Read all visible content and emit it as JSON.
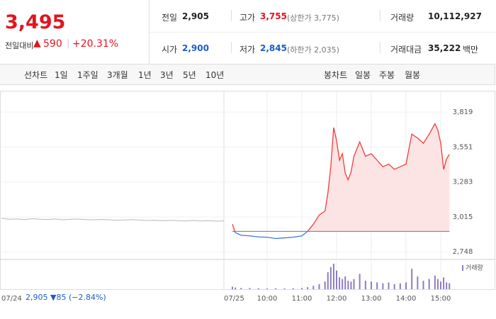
{
  "quote": {
    "price": "3,495",
    "change_caption": "전일대비",
    "change": "590",
    "change_rate": "+20.31%"
  },
  "stats": {
    "prev_close": {
      "label": "전일",
      "value": "2,905"
    },
    "open": {
      "label": "시가",
      "value": "2,900"
    },
    "high": {
      "label": "고가",
      "value": "3,755",
      "limit": "(상한가 3,775)"
    },
    "low": {
      "label": "저가",
      "value": "2,845",
      "limit": "(하한가 2,035)"
    },
    "volume": {
      "label": "거래량",
      "value": "10,112,927"
    },
    "amount": {
      "label": "거래대금",
      "value": "35,222",
      "unit": "백만"
    }
  },
  "tabs": {
    "line_label": "선차트",
    "periods": [
      "1일",
      "1주일",
      "3개월",
      "1년",
      "3년",
      "5년",
      "10년"
    ],
    "candle_label": "봉차트",
    "candles": [
      "일봉",
      "주봉",
      "월봉"
    ]
  },
  "chart": {
    "type": "line",
    "prev_day": {
      "date": "07/24",
      "color": "#b8b8b8",
      "values": [
        3005,
        2998,
        3000,
        2995,
        3002,
        2998,
        2996,
        3000,
        2994,
        2997,
        2999,
        2995,
        2993,
        2996,
        2994,
        2990,
        2992,
        2995,
        2991,
        2988,
        2990,
        2986,
        2989,
        2987,
        2985,
        2988,
        2984,
        2986,
        2983,
        2985
      ]
    },
    "today": {
      "date": "07/25",
      "x": [
        "09:00",
        "09:05",
        "09:15",
        "09:30",
        "09:45",
        "10:00",
        "10:15",
        "10:30",
        "10:45",
        "11:00",
        "11:10",
        "11:20",
        "11:30",
        "11:40",
        "11:45",
        "11:50",
        "11:55",
        "12:00",
        "12:05",
        "12:10",
        "12:15",
        "12:20",
        "12:25",
        "12:30",
        "12:40",
        "12:50",
        "13:00",
        "13:10",
        "13:20",
        "13:30",
        "13:40",
        "13:50",
        "14:00",
        "14:10",
        "14:20",
        "14:30",
        "14:40",
        "14:50",
        "14:55",
        "15:00",
        "15:05",
        "15:10",
        "15:15"
      ],
      "values": [
        2960,
        2895,
        2875,
        2870,
        2862,
        2860,
        2850,
        2855,
        2860,
        2870,
        2905,
        2960,
        3030,
        3060,
        3200,
        3400,
        3700,
        3600,
        3450,
        3500,
        3350,
        3300,
        3360,
        3480,
        3590,
        3480,
        3500,
        3450,
        3400,
        3420,
        3380,
        3400,
        3420,
        3650,
        3620,
        3580,
        3650,
        3730,
        3680,
        3580,
        3380,
        3460,
        3495
      ],
      "volume": [
        3000,
        2000,
        1500,
        1500,
        1200,
        1000,
        1200,
        1000,
        1200,
        1500,
        2500,
        4000,
        6000,
        9000,
        20000,
        26000,
        30000,
        22000,
        14000,
        12000,
        15000,
        10000,
        9000,
        12000,
        18000,
        10000,
        9000,
        8000,
        7000,
        8000,
        6000,
        7000,
        8000,
        24000,
        15000,
        10000,
        12000,
        16000,
        12000,
        9000,
        14000,
        8000,
        7000
      ]
    },
    "base": 2905,
    "up_color": "#f03c3c",
    "up_fill": "#fde4e4",
    "down_color": "#3a7ad5",
    "ylim": [
      2695,
      3890
    ],
    "yticks": [
      {
        "value": 3819,
        "label": "3,819"
      },
      {
        "value": 3551,
        "label": "3,551"
      },
      {
        "value": 3283,
        "label": "3,283"
      },
      {
        "value": 3015,
        "label": "3,015"
      },
      {
        "value": 2748,
        "label": "2,748"
      }
    ],
    "xticks": [
      "10:00",
      "11:00",
      "12:00",
      "13:00",
      "14:00",
      "15:00"
    ],
    "volume_label": "거래량",
    "volume_color": "#8e7cc3"
  },
  "footer": {
    "close": "2,905",
    "change": "85",
    "change_rate": "(−2.84%)"
  }
}
